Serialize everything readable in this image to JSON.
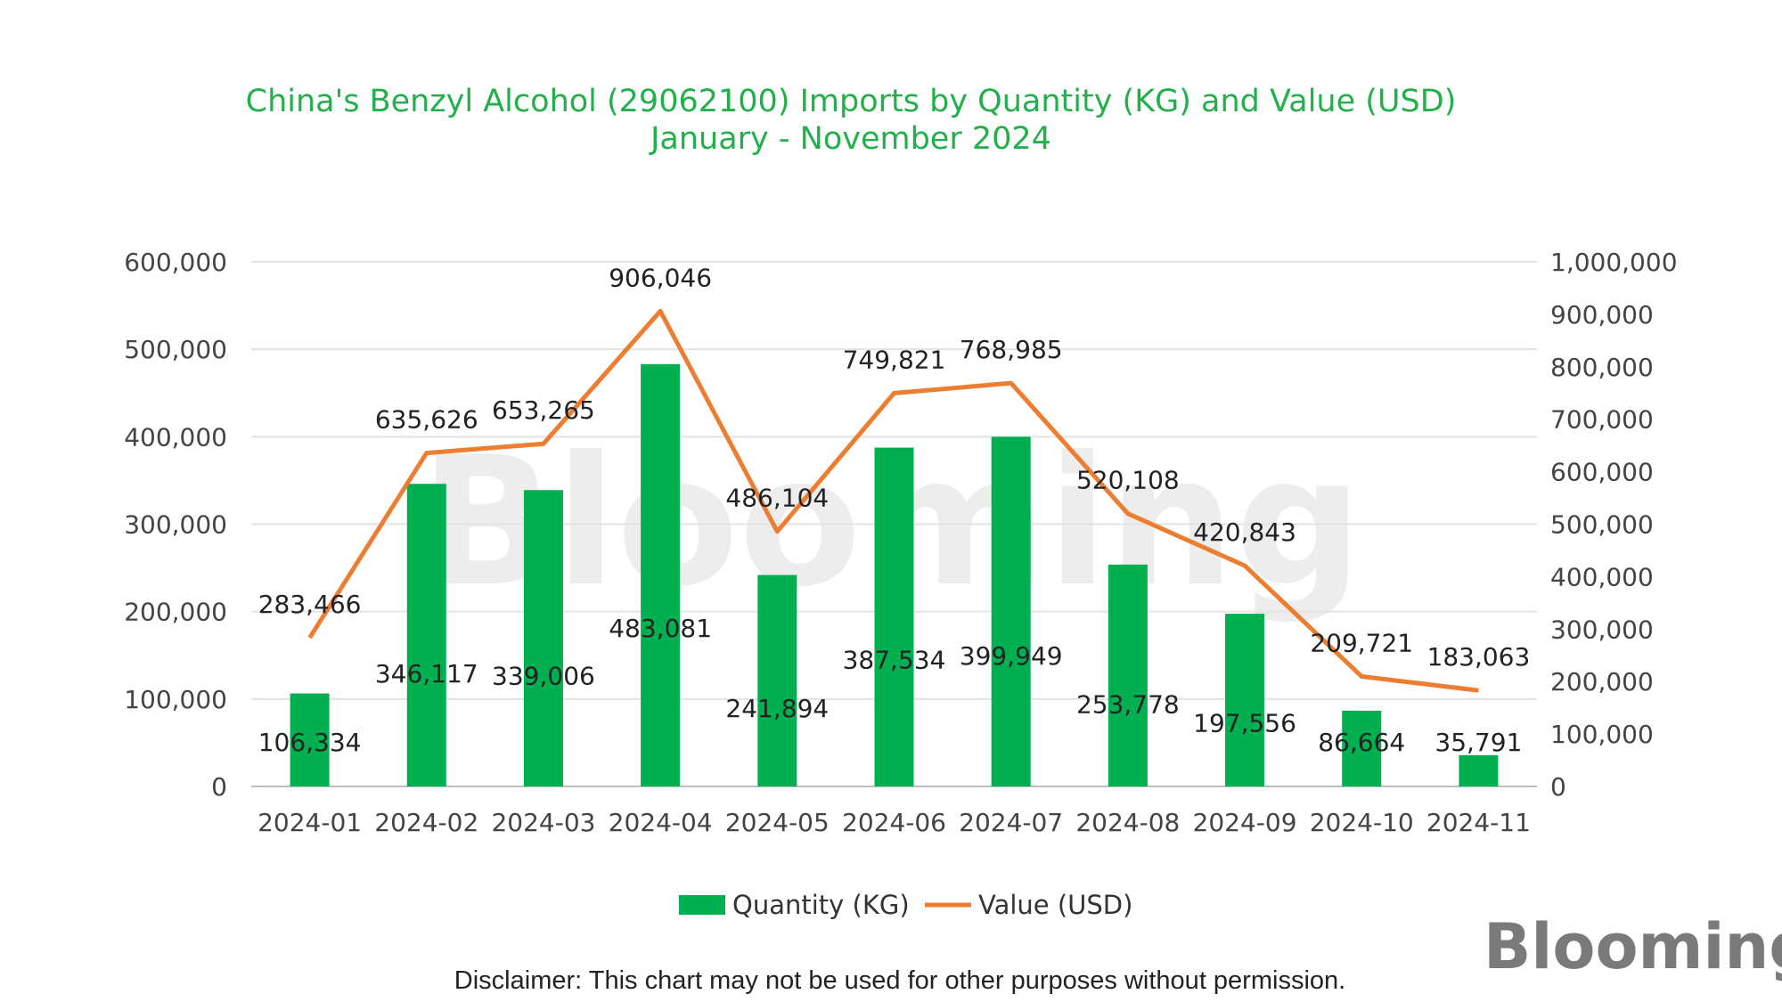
{
  "chart_data": {
    "type": "bar+line",
    "title": "China's Benzyl Alcohol (29062100) Imports by Quantity (KG) and Value (USD)",
    "subtitle": "January - November 2024",
    "categories": [
      "2024-01",
      "2024-02",
      "2024-03",
      "2024-04",
      "2024-05",
      "2024-06",
      "2024-07",
      "2024-08",
      "2024-09",
      "2024-10",
      "2024-11"
    ],
    "series": [
      {
        "name": "Quantity (KG)",
        "type": "bar",
        "axis": "left",
        "color": "#00b050",
        "values": [
          106334,
          346117,
          339006,
          483081,
          241894,
          387534,
          399949,
          253778,
          197556,
          86664,
          35791
        ],
        "labels": [
          "106,334",
          "346,117",
          "339,006",
          "483,081",
          "241,894",
          "387,534",
          "399,949",
          "253,778",
          "197,556",
          "86,664",
          "35,791"
        ]
      },
      {
        "name": "Value (USD)",
        "type": "line",
        "axis": "right",
        "color": "#ed7d31",
        "values": [
          283466,
          635626,
          653265,
          906046,
          486104,
          749821,
          768985,
          520108,
          420843,
          209721,
          183063
        ],
        "labels": [
          "283,466",
          "635,626",
          "653,265",
          "906,046",
          "486,104",
          "749,821",
          "768,985",
          "520,108",
          "420,843",
          "209,721",
          "183,063"
        ]
      }
    ],
    "left_axis": {
      "min": 0,
      "max": 600000,
      "ticks": [
        "0",
        "100,000",
        "200,000",
        "300,000",
        "400,000",
        "500,000",
        "600,000"
      ]
    },
    "right_axis": {
      "min": 0,
      "max": 1000000,
      "ticks": [
        "0",
        "100,000",
        "200,000",
        "300,000",
        "400,000",
        "500,000",
        "600,000",
        "700,000",
        "800,000",
        "900,000",
        "1,000,000"
      ]
    },
    "grid": true,
    "legend_position": "bottom"
  },
  "legend": {
    "quantity_label": "Quantity (KG)",
    "value_label": "Value (USD)"
  },
  "watermark": "Blooming",
  "logo": "Blooming",
  "disclaimer": "Disclaimer: This chart may not be used for other purposes without permission."
}
